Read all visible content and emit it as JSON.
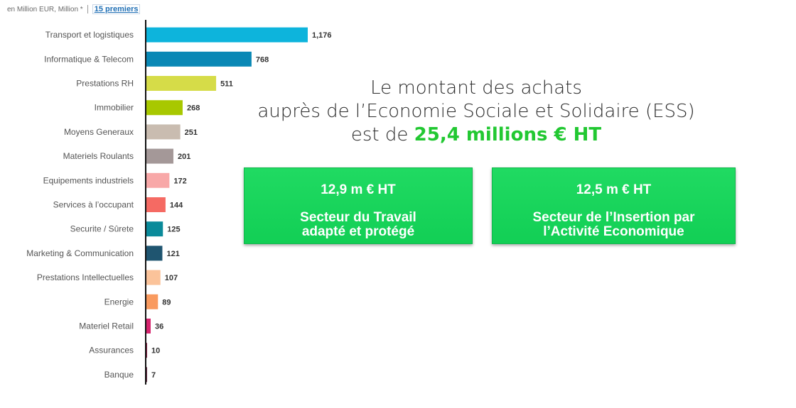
{
  "toolbar": {
    "unit_label": "en Million EUR, Million *",
    "top_link": "15 premiers"
  },
  "headline": {
    "line1": "Le montant des achats",
    "line2": "auprès de l’Economie Sociale et Solidaire (ESS)",
    "line3_prefix": "est de ",
    "line3_highlight": "25,4 millions € HT"
  },
  "cards": [
    {
      "amount": "12,9 m € HT",
      "line1": "Secteur du Travail",
      "line2": "adapté et protégé"
    },
    {
      "amount": "12,5 m € HT",
      "line1": "Secteur de l’Insertion par",
      "line2": "l’Activité Economique"
    }
  ],
  "colors": {
    "headline_highlight": "#22c832",
    "card_bg": "#16d158"
  },
  "chart_data": {
    "type": "bar",
    "orientation": "horizontal",
    "categories": [
      "Transport et logistiques",
      "Informatique & Telecom",
      "Prestations RH",
      "Immobilier",
      "Moyens Generaux",
      "Materiels Roulants",
      "Equipements industriels",
      "Services à l’occupant",
      "Securite / Sûrete",
      "Marketing & Communication",
      "Prestations Intellectuelles",
      "Energie",
      "Materiel Retail",
      "Assurances",
      "Banque"
    ],
    "values": [
      1176,
      768,
      511,
      268,
      251,
      201,
      172,
      144,
      125,
      121,
      107,
      89,
      36,
      10,
      7
    ],
    "value_labels": [
      "1,176",
      "768",
      "511",
      "268",
      "251",
      "201",
      "172",
      "144",
      "125",
      "121",
      "107",
      "89",
      "36",
      "10",
      "7"
    ],
    "bar_colors": [
      "#0db4dc",
      "#0a88b5",
      "#d6dc48",
      "#a8c800",
      "#c9bcb0",
      "#a49898",
      "#f8a8a8",
      "#f56a63",
      "#0a8a9a",
      "#1f5570",
      "#fbc39a",
      "#f99a5f",
      "#d6246e",
      "#8a1f45",
      "#6a2a45"
    ],
    "xlim": [
      0,
      1176
    ],
    "grid": false
  }
}
